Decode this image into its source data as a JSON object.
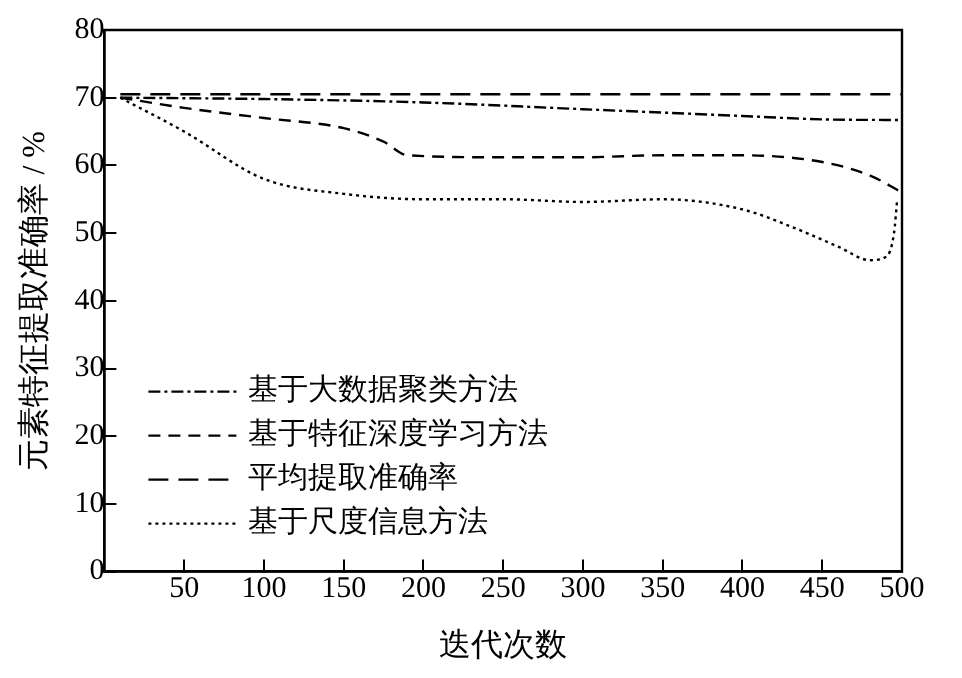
{
  "chart_data": {
    "type": "line",
    "xlabel": "迭代次数",
    "ylabel": "元素特征提取准确率 / %",
    "xlim": [
      0,
      500
    ],
    "ylim": [
      0,
      80
    ],
    "xticks": [
      50,
      100,
      150,
      200,
      250,
      300,
      350,
      400,
      450,
      500
    ],
    "yticks": [
      0,
      10,
      20,
      30,
      40,
      50,
      60,
      70,
      80
    ],
    "grid": false,
    "legend": "bottom left",
    "marker": "none",
    "series": [
      {
        "name": "基于大数据聚类方法",
        "color": "#000000",
        "line_style": "dashdot",
        "x": [
          10,
          100,
          200,
          300,
          400,
          450,
          500
        ],
        "values": [
          70,
          69.8,
          69.3,
          68.3,
          67.3,
          66.8,
          66.7
        ]
      },
      {
        "name": "基于特征深度学习方法",
        "color": "#000000",
        "line_style": "dashed",
        "x": [
          10,
          50,
          100,
          150,
          175,
          190,
          250,
          300,
          350,
          400,
          450,
          480,
          500
        ],
        "values": [
          70,
          68.5,
          67,
          65.5,
          63.5,
          61.5,
          61.2,
          61.2,
          61.5,
          61.5,
          60.5,
          58.5,
          56
        ]
      },
      {
        "name": "平均提取准确率",
        "color": "#000000",
        "line_style": "longdash",
        "x": [
          10,
          500
        ],
        "values": [
          70.5,
          70.5
        ]
      },
      {
        "name": "基于尺度信息方法",
        "color": "#000000",
        "line_style": "dotted",
        "x": [
          10,
          50,
          100,
          150,
          200,
          250,
          300,
          350,
          400,
          430,
          460,
          480,
          490,
          495,
          497
        ],
        "values": [
          70,
          65,
          58,
          55.8,
          55,
          55,
          54.6,
          55,
          53.5,
          51,
          48,
          46,
          46.5,
          50,
          55
        ]
      }
    ]
  }
}
